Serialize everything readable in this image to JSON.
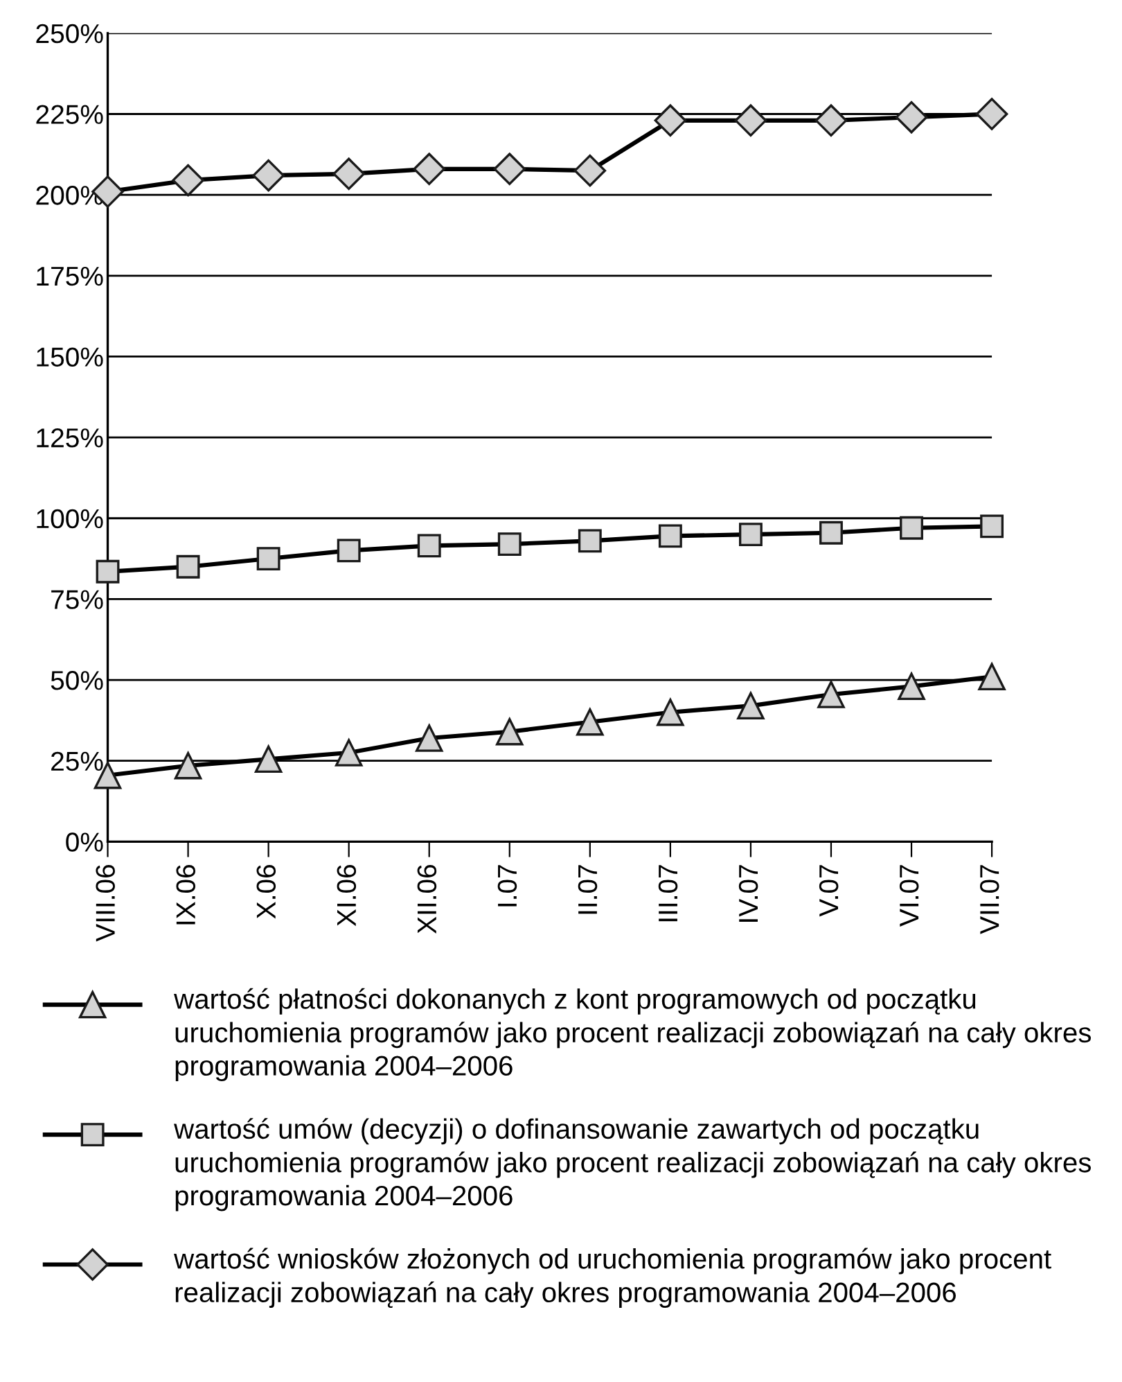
{
  "chart_data": {
    "type": "line",
    "categories": [
      "VIII.06",
      "IX.06",
      "X.06",
      "XI.06",
      "XII.06",
      "I.07",
      "II.07",
      "III.07",
      "IV.07",
      "V.07",
      "VI.07",
      "VII.07"
    ],
    "series": [
      {
        "name": "wartość płatności dokonanych z kont programowych od początku uruchomienia programów jako procent realizacji zobowiązań na cały okres programowania 2004–2006",
        "color": "#000000",
        "marker": "triangle",
        "values": [
          20.5,
          23.5,
          25.5,
          27.5,
          32,
          34,
          37,
          40,
          42,
          45.5,
          48,
          51
        ]
      },
      {
        "name": "wartość umów (decyzji) o dofinansowanie zawartych od początku uruchomienia programów jako procent realizacji zobowiązań na cały okres programowania 2004–2006",
        "color": "#000000",
        "marker": "square",
        "values": [
          83.5,
          85,
          87.5,
          90,
          91.5,
          92,
          93,
          94.5,
          95,
          95.5,
          97,
          97.5
        ]
      },
      {
        "name": "wartość wniosków złożonych od uruchomienia programów jako procent realizacji zobowiązań na cały okres programowania 2004–2006",
        "color": "#000000",
        "marker": "diamond",
        "values": [
          201,
          204.5,
          206,
          206.5,
          208,
          208,
          207.5,
          223,
          223,
          223,
          224,
          225
        ]
      }
    ],
    "ylim": [
      0,
      250
    ],
    "yticks": [
      {
        "value": 0,
        "label": "0%"
      },
      {
        "value": 25,
        "label": "25%"
      },
      {
        "value": 50,
        "label": "50%"
      },
      {
        "value": 75,
        "label": "75%"
      },
      {
        "value": 100,
        "label": "100%"
      },
      {
        "value": 125,
        "label": "125%"
      },
      {
        "value": 150,
        "label": "150%"
      },
      {
        "value": 175,
        "label": "175%"
      },
      {
        "value": 200,
        "label": "200%"
      },
      {
        "value": 225,
        "label": "225%"
      },
      {
        "value": 250,
        "label": "250%"
      }
    ],
    "grid": "y",
    "legend": "bottom",
    "line_style": "solid"
  }
}
